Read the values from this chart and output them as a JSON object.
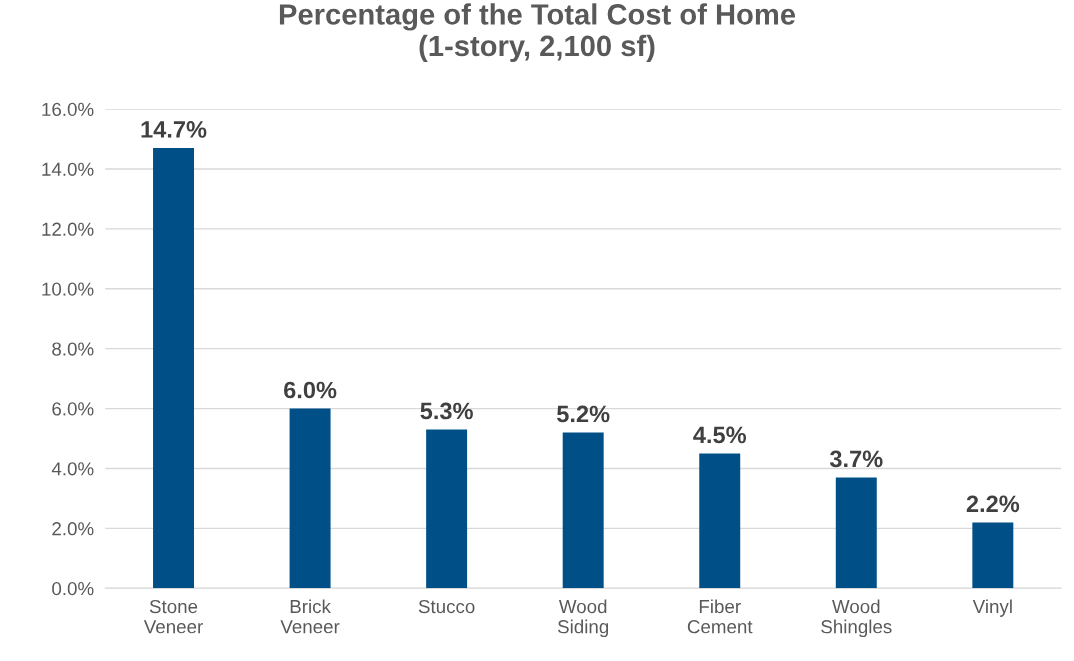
{
  "chart_data": {
    "type": "bar",
    "title": "Percentage of the Total Cost of Home\n(1-story, 2,100 sf)",
    "categories": [
      "Stone\nVeneer",
      "Brick\nVeneer",
      "Stucco",
      "Wood\nSiding",
      "Fiber\nCement",
      "Wood\nShingles",
      "Vinyl"
    ],
    "values": [
      14.7,
      6.0,
      5.3,
      5.2,
      4.5,
      3.7,
      2.2
    ],
    "value_labels": [
      "14.7%",
      "6.0%",
      "5.3%",
      "5.2%",
      "4.5%",
      "3.7%",
      "2.2%"
    ],
    "color": "#004f87",
    "ylim": [
      0,
      16
    ],
    "yticks": [
      {
        "value": 0,
        "label": "0.0%"
      },
      {
        "value": 2,
        "label": "2.0%"
      },
      {
        "value": 4,
        "label": "4.0%"
      },
      {
        "value": 6,
        "label": "6.0%"
      },
      {
        "value": 8,
        "label": "8.0%"
      },
      {
        "value": 10,
        "label": "10.0%"
      },
      {
        "value": 12,
        "label": "12.0%"
      },
      {
        "value": 14,
        "label": "14.0%"
      },
      {
        "value": 16,
        "label": "16.0%"
      }
    ],
    "grid": "y",
    "legend": false
  }
}
